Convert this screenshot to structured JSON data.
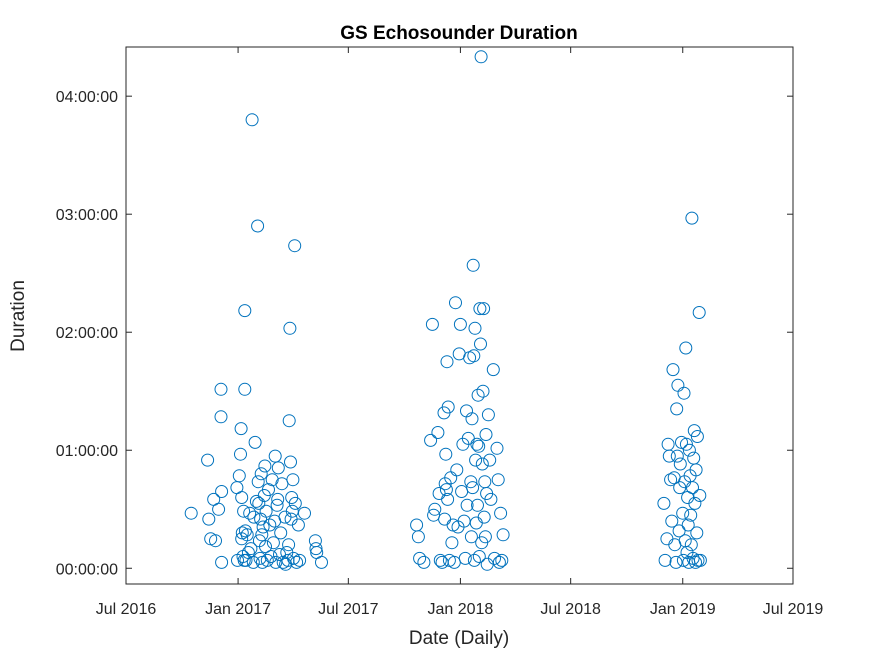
{
  "chart_data": {
    "type": "scatter",
    "title": "GS Echosounder Duration",
    "xlabel": "Date (Daily)",
    "ylabel": "Duration",
    "grid": false,
    "marker": "open-circle",
    "color": "#0072BD",
    "xlim": [
      "2016-07-01",
      "2019-07-01"
    ],
    "ylim_seconds": [
      -480,
      15900
    ],
    "x_ticks": [
      {
        "date": "2016-07-01",
        "label": "Jul 2016"
      },
      {
        "date": "2017-01-01",
        "label": "Jan 2017"
      },
      {
        "date": "2017-07-01",
        "label": "Jul 2017"
      },
      {
        "date": "2018-01-01",
        "label": "Jan 2018"
      },
      {
        "date": "2018-07-01",
        "label": "Jul 2018"
      },
      {
        "date": "2019-01-01",
        "label": "Jan 2019"
      },
      {
        "date": "2019-07-01",
        "label": "Jul 2019"
      }
    ],
    "y_ticks": [
      {
        "seconds": 0,
        "label": "00:00:00"
      },
      {
        "seconds": 3600,
        "label": "01:00:00"
      },
      {
        "seconds": 7200,
        "label": "02:00:00"
      },
      {
        "seconds": 10800,
        "label": "03:00:00"
      },
      {
        "seconds": 14400,
        "label": "04:00:00"
      }
    ],
    "points": [
      [
        "2016-10-16",
        "00:28:00"
      ],
      [
        "2016-11-12",
        "00:55:00"
      ],
      [
        "2016-11-14",
        "00:25:00"
      ],
      [
        "2016-11-17",
        "00:15:00"
      ],
      [
        "2016-11-22",
        "00:35:00"
      ],
      [
        "2016-11-25",
        "00:14:00"
      ],
      [
        "2016-11-30",
        "00:30:00"
      ],
      [
        "2016-12-04",
        "01:31:00"
      ],
      [
        "2016-12-04",
        "01:17:00"
      ],
      [
        "2016-12-05",
        "00:39:00"
      ],
      [
        "2016-12-05",
        "00:03:00"
      ],
      [
        "2016-12-30",
        "00:41:00"
      ],
      [
        "2016-12-31",
        "00:04:00"
      ],
      [
        "2017-01-03",
        "00:47:00"
      ],
      [
        "2017-01-05",
        "00:58:00"
      ],
      [
        "2017-01-06",
        "01:11:00"
      ],
      [
        "2017-01-07",
        "00:36:00"
      ],
      [
        "2017-01-07",
        "00:15:00"
      ],
      [
        "2017-01-08",
        "00:18:00"
      ],
      [
        "2017-01-09",
        "00:06:00"
      ],
      [
        "2017-01-10",
        "00:29:00"
      ],
      [
        "2017-01-11",
        "00:04:00"
      ],
      [
        "2017-01-12",
        "02:11:00"
      ],
      [
        "2017-01-12",
        "01:31:00"
      ],
      [
        "2017-01-13",
        "00:19:00"
      ],
      [
        "2017-01-14",
        "00:04:00"
      ],
      [
        "2017-01-16",
        "00:17:00"
      ],
      [
        "2017-01-18",
        "00:08:00"
      ],
      [
        "2017-01-20",
        "00:28:00"
      ],
      [
        "2017-01-22",
        "00:10:00"
      ],
      [
        "2017-01-24",
        "03:48:00"
      ],
      [
        "2017-01-26",
        "00:03:00"
      ],
      [
        "2017-01-27",
        "00:26:00"
      ],
      [
        "2017-01-29",
        "01:04:00"
      ],
      [
        "2017-01-31",
        "00:34:00"
      ],
      [
        "2017-02-02",
        "02:54:00"
      ],
      [
        "2017-02-03",
        "00:44:00"
      ],
      [
        "2017-02-04",
        "00:33:00"
      ],
      [
        "2017-02-05",
        "00:14:00"
      ],
      [
        "2017-02-06",
        "00:05:00"
      ],
      [
        "2017-02-07",
        "00:25:00"
      ],
      [
        "2017-02-08",
        "00:48:00"
      ],
      [
        "2017-02-09",
        "00:17:00"
      ],
      [
        "2017-02-10",
        "00:03:00"
      ],
      [
        "2017-02-11",
        "00:21:00"
      ],
      [
        "2017-02-13",
        "00:37:00"
      ],
      [
        "2017-02-14",
        "00:52:00"
      ],
      [
        "2017-02-15",
        "00:11:00"
      ],
      [
        "2017-02-16",
        "00:29:00"
      ],
      [
        "2017-02-18",
        "00:04:00"
      ],
      [
        "2017-02-20",
        "00:40:00"
      ],
      [
        "2017-02-22",
        "00:22:00"
      ],
      [
        "2017-02-24",
        "00:06:00"
      ],
      [
        "2017-02-26",
        "00:45:00"
      ],
      [
        "2017-02-28",
        "00:13:00"
      ],
      [
        "2017-03-02",
        "00:24:00"
      ],
      [
        "2017-03-03",
        "00:57:00"
      ],
      [
        "2017-03-04",
        "00:03:00"
      ],
      [
        "2017-03-06",
        "00:32:00"
      ],
      [
        "2017-03-07",
        "00:35:00"
      ],
      [
        "2017-03-08",
        "00:51:00"
      ],
      [
        "2017-03-10",
        "00:07:00"
      ],
      [
        "2017-03-12",
        "00:18:00"
      ],
      [
        "2017-03-14",
        "00:43:00"
      ],
      [
        "2017-03-16",
        "00:03:00"
      ],
      [
        "2017-03-19",
        "00:26:00"
      ],
      [
        "2017-03-20",
        "00:02:00"
      ],
      [
        "2017-03-22",
        "00:08:00"
      ],
      [
        "2017-03-24",
        "00:04:00"
      ],
      [
        "2017-03-25",
        "00:12:00"
      ],
      [
        "2017-03-26",
        "01:15:00"
      ],
      [
        "2017-03-27",
        "02:02:00"
      ],
      [
        "2017-03-28",
        "00:54:00"
      ],
      [
        "2017-03-29",
        "00:25:00"
      ],
      [
        "2017-03-30",
        "00:36:00"
      ],
      [
        "2017-03-31",
        "00:29:00"
      ],
      [
        "2017-04-01",
        "00:45:00"
      ],
      [
        "2017-04-02",
        "00:05:00"
      ],
      [
        "2017-04-04",
        "02:44:00"
      ],
      [
        "2017-04-05",
        "00:33:00"
      ],
      [
        "2017-04-07",
        "00:03:00"
      ],
      [
        "2017-04-10",
        "00:22:00"
      ],
      [
        "2017-04-12",
        "00:04:00"
      ],
      [
        "2017-04-20",
        "00:28:00"
      ],
      [
        "2017-05-08",
        "00:14:00"
      ],
      [
        "2017-05-09",
        "00:10:00"
      ],
      [
        "2017-05-10",
        "00:08:00"
      ],
      [
        "2017-05-18",
        "00:03:00"
      ],
      [
        "2017-10-21",
        "00:22:00"
      ],
      [
        "2017-10-24",
        "00:16:00"
      ],
      [
        "2017-10-26",
        "00:05:00"
      ],
      [
        "2017-11-02",
        "00:03:00"
      ],
      [
        "2017-11-13",
        "01:05:00"
      ],
      [
        "2017-11-16",
        "02:04:00"
      ],
      [
        "2017-11-18",
        "00:27:00"
      ],
      [
        "2017-11-20",
        "00:30:00"
      ],
      [
        "2017-11-25",
        "01:09:00"
      ],
      [
        "2017-11-27",
        "00:38:00"
      ],
      [
        "2017-11-29",
        "00:04:00"
      ],
      [
        "2017-12-02",
        "00:03:00"
      ],
      [
        "2017-12-05",
        "01:19:00"
      ],
      [
        "2017-12-06",
        "00:25:00"
      ],
      [
        "2017-12-07",
        "00:43:00"
      ],
      [
        "2017-12-08",
        "00:58:00"
      ],
      [
        "2017-12-09",
        "00:40:00"
      ],
      [
        "2017-12-10",
        "01:45:00"
      ],
      [
        "2017-12-11",
        "00:35:00"
      ],
      [
        "2017-12-12",
        "01:22:00"
      ],
      [
        "2017-12-14",
        "00:04:00"
      ],
      [
        "2017-12-16",
        "00:46:00"
      ],
      [
        "2017-12-18",
        "00:13:00"
      ],
      [
        "2017-12-20",
        "00:22:00"
      ],
      [
        "2017-12-22",
        "00:03:00"
      ],
      [
        "2017-12-24",
        "02:15:00"
      ],
      [
        "2017-12-26",
        "00:50:00"
      ],
      [
        "2017-12-28",
        "00:21:00"
      ],
      [
        "2017-12-30",
        "01:49:00"
      ],
      [
        "2018-01-01",
        "02:04:00"
      ],
      [
        "2018-01-03",
        "00:39:00"
      ],
      [
        "2018-01-05",
        "01:03:00"
      ],
      [
        "2018-01-07",
        "00:24:00"
      ],
      [
        "2018-01-09",
        "00:05:00"
      ],
      [
        "2018-01-11",
        "01:20:00"
      ],
      [
        "2018-01-12",
        "00:32:00"
      ],
      [
        "2018-01-14",
        "01:06:00"
      ],
      [
        "2018-01-16",
        "01:47:00"
      ],
      [
        "2018-01-18",
        "00:44:00"
      ],
      [
        "2018-01-19",
        "00:16:00"
      ],
      [
        "2018-01-20",
        "01:16:00"
      ],
      [
        "2018-01-21",
        "00:41:00"
      ],
      [
        "2018-01-22",
        "02:34:00"
      ],
      [
        "2018-01-23",
        "01:48:00"
      ],
      [
        "2018-01-24",
        "00:04:00"
      ],
      [
        "2018-01-25",
        "02:02:00"
      ],
      [
        "2018-01-26",
        "00:55:00"
      ],
      [
        "2018-01-27",
        "00:23:00"
      ],
      [
        "2018-01-28",
        "01:03:00"
      ],
      [
        "2018-01-29",
        "00:32:00"
      ],
      [
        "2018-01-30",
        "01:28:00"
      ],
      [
        "2018-01-31",
        "01:02:00"
      ],
      [
        "2018-02-01",
        "00:06:00"
      ],
      [
        "2018-02-02",
        "02:12:00"
      ],
      [
        "2018-02-03",
        "01:54:00"
      ],
      [
        "2018-02-04",
        "04:20:00"
      ],
      [
        "2018-02-05",
        "00:13:00"
      ],
      [
        "2018-02-06",
        "00:53:00"
      ],
      [
        "2018-02-07",
        "01:30:00"
      ],
      [
        "2018-02-08",
        "02:12:00"
      ],
      [
        "2018-02-09",
        "00:26:00"
      ],
      [
        "2018-02-10",
        "00:44:00"
      ],
      [
        "2018-02-11",
        "00:16:00"
      ],
      [
        "2018-02-12",
        "01:08:00"
      ],
      [
        "2018-02-13",
        "00:38:00"
      ],
      [
        "2018-02-14",
        "00:02:00"
      ],
      [
        "2018-02-16",
        "01:18:00"
      ],
      [
        "2018-02-18",
        "00:55:00"
      ],
      [
        "2018-02-20",
        "00:35:00"
      ],
      [
        "2018-02-24",
        "01:41:00"
      ],
      [
        "2018-02-26",
        "00:05:00"
      ],
      [
        "2018-03-02",
        "01:01:00"
      ],
      [
        "2018-03-04",
        "00:45:00"
      ],
      [
        "2018-03-06",
        "00:03:00"
      ],
      [
        "2018-03-08",
        "00:28:00"
      ],
      [
        "2018-03-10",
        "00:04:00"
      ],
      [
        "2018-03-12",
        "00:17:00"
      ],
      [
        "2018-12-01",
        "00:33:00"
      ],
      [
        "2018-12-03",
        "00:04:00"
      ],
      [
        "2018-12-06",
        "00:15:00"
      ],
      [
        "2018-12-08",
        "01:03:00"
      ],
      [
        "2018-12-10",
        "00:57:00"
      ],
      [
        "2018-12-12",
        "00:45:00"
      ],
      [
        "2018-12-14",
        "00:24:00"
      ],
      [
        "2018-12-16",
        "01:41:00"
      ],
      [
        "2018-12-18",
        "00:46:00"
      ],
      [
        "2018-12-19",
        "00:12:00"
      ],
      [
        "2018-12-21",
        "00:03:00"
      ],
      [
        "2018-12-22",
        "01:21:00"
      ],
      [
        "2018-12-23",
        "00:57:00"
      ],
      [
        "2018-12-24",
        "01:33:00"
      ],
      [
        "2018-12-26",
        "00:19:00"
      ],
      [
        "2018-12-27",
        "00:41:00"
      ],
      [
        "2018-12-28",
        "00:53:00"
      ],
      [
        "2018-12-30",
        "01:04:00"
      ],
      [
        "2019-01-01",
        "00:28:00"
      ],
      [
        "2019-01-02",
        "00:04:00"
      ],
      [
        "2019-01-03",
        "01:29:00"
      ],
      [
        "2019-01-04",
        "00:44:00"
      ],
      [
        "2019-01-05",
        "00:14:00"
      ],
      [
        "2019-01-06",
        "01:52:00"
      ],
      [
        "2019-01-07",
        "01:03:00"
      ],
      [
        "2019-01-08",
        "00:08:00"
      ],
      [
        "2019-01-09",
        "00:36:00"
      ],
      [
        "2019-01-10",
        "00:22:00"
      ],
      [
        "2019-01-11",
        "00:03:00"
      ],
      [
        "2019-01-12",
        "01:00:00"
      ],
      [
        "2019-01-13",
        "00:47:00"
      ],
      [
        "2019-01-14",
        "00:27:00"
      ],
      [
        "2019-01-15",
        "00:12:00"
      ],
      [
        "2019-01-16",
        "02:58:00"
      ],
      [
        "2019-01-17",
        "00:41:00"
      ],
      [
        "2019-01-18",
        "00:05:00"
      ],
      [
        "2019-01-19",
        "00:56:00"
      ],
      [
        "2019-01-20",
        "01:10:00"
      ],
      [
        "2019-01-21",
        "00:33:00"
      ],
      [
        "2019-01-22",
        "00:03:00"
      ],
      [
        "2019-01-23",
        "00:50:00"
      ],
      [
        "2019-01-24",
        "00:18:00"
      ],
      [
        "2019-01-25",
        "01:07:00"
      ],
      [
        "2019-01-26",
        "00:04:00"
      ],
      [
        "2019-01-28",
        "02:10:00"
      ],
      [
        "2019-01-29",
        "00:37:00"
      ],
      [
        "2019-01-30",
        "00:04:00"
      ]
    ]
  }
}
